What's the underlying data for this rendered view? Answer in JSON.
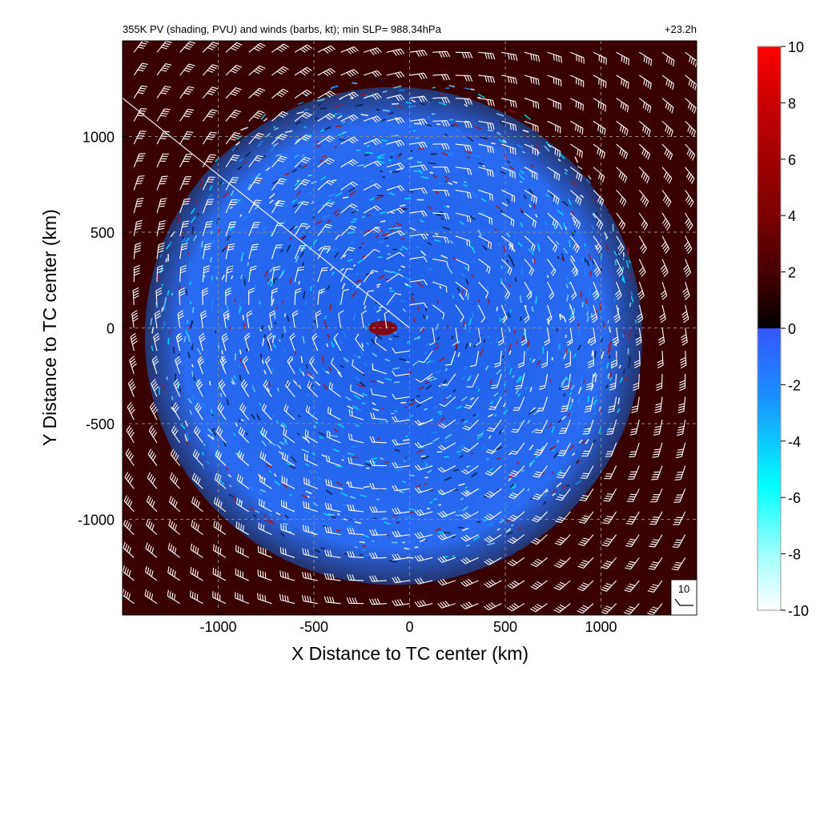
{
  "chart_data": {
    "type": "heatmap",
    "title": "355K PV (shading, PVU) and winds (barbs, kt); min SLP= 988.34hPa",
    "time_label": "+23.2h",
    "xlabel": "X Distance to TC center (km)",
    "ylabel": "Y Distance to TC center (km)",
    "xlim": [
      -1500,
      1500
    ],
    "ylim": [
      -1500,
      1500
    ],
    "x_ticks": [
      -1000,
      -500,
      0,
      500,
      1000
    ],
    "y_ticks": [
      -1000,
      -500,
      0,
      500,
      1000
    ],
    "x_tick_labels": [
      "-1000",
      "-500",
      "0",
      "500",
      "1000"
    ],
    "y_tick_labels": [
      "-1000",
      "-500",
      "0",
      "500",
      "1000"
    ],
    "grid": true,
    "colorbar": {
      "range": [
        -10,
        10
      ],
      "ticks": [
        10,
        8,
        6,
        4,
        2,
        0,
        -2,
        -4,
        -6,
        -8,
        -10
      ],
      "tick_labels": [
        "10",
        "8",
        "6",
        "4",
        "2",
        "0",
        "-2",
        "-4",
        "-6",
        "-8",
        "-10"
      ],
      "positive_colors": [
        "#000000",
        "#3a0000",
        "#7a0000",
        "#c00000",
        "#ff0000"
      ],
      "negative_colors": [
        "#3355ff",
        "#1a8fff",
        "#00ffff",
        "#a0ffff",
        "#ffffff"
      ]
    },
    "fields": {
      "background_pv_pvu": 2.0,
      "negative_region_radius_km": 1300,
      "center_pv_pvu": 4.0
    },
    "wind_barbs": {
      "grid_spacing_km": 120,
      "circulation": "counterclockwise",
      "reference_vector_label": "10",
      "reference_vector_kt": 10
    },
    "colors": {
      "background_red": "#3a0000",
      "negative_blue": "#2f6cf0",
      "barb": "#ffffff"
    }
  }
}
